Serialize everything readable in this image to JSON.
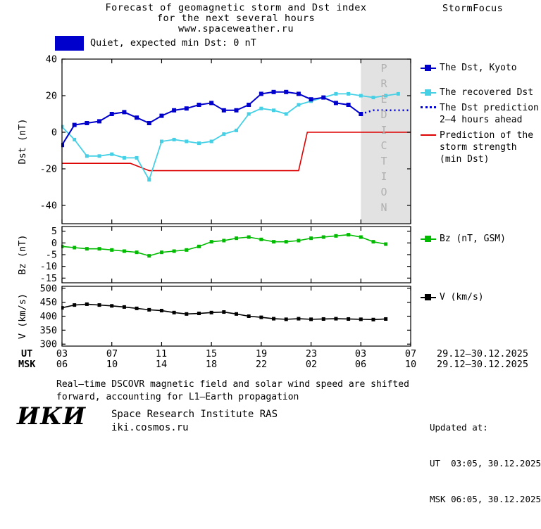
{
  "header": {
    "title_lines": [
      "Forecast of geomagnetic storm and Dst index",
      "for the next several hours",
      "www.spaceweather.ru"
    ],
    "brand": "StormFocus"
  },
  "banner": {
    "label": "Quiet, expected min Dst: 0 nT",
    "color": "#0000cc"
  },
  "prediction_overlay": "PREDICTION",
  "chart_data": [
    {
      "id": "dst",
      "type": "line",
      "ylabel": "Dst (nT)",
      "ylim": [
        -50,
        40
      ],
      "yticks": [
        40,
        20,
        0,
        -20,
        -40
      ],
      "xlim": [
        3,
        31
      ],
      "xticks": [
        3,
        7,
        11,
        15,
        19,
        23,
        27,
        31
      ],
      "prediction_region": [
        27,
        31
      ],
      "series": [
        {
          "name": "Prediction of the storm strength (min Dst)",
          "color": "#dd0000",
          "width": 1.6,
          "x": [
            3,
            8.5,
            10,
            22,
            22.7,
            31
          ],
          "values": [
            -17,
            -17,
            -21,
            -21,
            0,
            0
          ]
        },
        {
          "name": "The recovered Dst",
          "color": "#45d0e6",
          "width": 1.8,
          "marker": 5,
          "x0": 3,
          "values": [
            3,
            -4,
            -13,
            -13,
            -12,
            -14,
            -14,
            -26,
            -5,
            -4,
            -5,
            -6,
            -5,
            -1,
            1,
            10,
            13,
            12,
            10,
            15,
            17,
            19,
            21,
            21,
            20,
            19,
            20,
            21
          ]
        },
        {
          "name": "The Dst, Kyoto",
          "color": "#0000cc",
          "width": 2,
          "marker": 6,
          "x0": 3,
          "values": [
            -7,
            4,
            5,
            6,
            10,
            11,
            8,
            5,
            9,
            12,
            13,
            15,
            16,
            12,
            12,
            15,
            21,
            22,
            22,
            21,
            18,
            19,
            16,
            15,
            10
          ]
        },
        {
          "name": "The Dst prediction 2–4 hours ahead",
          "color": "#0000cc",
          "width": 2.6,
          "dash": "2 4",
          "x": [
            27,
            28,
            31
          ],
          "values": [
            10,
            12,
            12
          ]
        }
      ]
    },
    {
      "id": "bz",
      "type": "line",
      "ylabel": "Bz (nT)",
      "ylim": [
        -17,
        7
      ],
      "yticks": [
        5,
        0,
        -5,
        -10,
        -15
      ],
      "xlim": [
        3,
        31
      ],
      "xticks": [
        3,
        7,
        11,
        15,
        19,
        23,
        27,
        31
      ],
      "series": [
        {
          "name": "Bz (nT, GSM)",
          "color": "#00bb00",
          "width": 1.6,
          "marker": 5,
          "x0": 3,
          "values": [
            -1.5,
            -2,
            -2.5,
            -2.5,
            -3,
            -3.5,
            -4,
            -5.5,
            -4,
            -3.5,
            -3,
            -1.5,
            0.5,
            1,
            2,
            2.5,
            1.5,
            0.5,
            0.5,
            1,
            2,
            2.5,
            3,
            3.5,
            2.5,
            0.5,
            -0.5
          ]
        }
      ]
    },
    {
      "id": "v",
      "type": "line",
      "ylabel": "V (km/s)",
      "ylim": [
        293,
        507
      ],
      "yticks": [
        500,
        450,
        400,
        350,
        300
      ],
      "xlim": [
        3,
        31
      ],
      "xticks": [
        3,
        7,
        11,
        15,
        19,
        23,
        27,
        31
      ],
      "series": [
        {
          "name": "V (km/s)",
          "color": "#000000",
          "width": 1.6,
          "marker": 5,
          "x0": 3,
          "values": [
            430,
            440,
            443,
            440,
            437,
            433,
            428,
            423,
            420,
            413,
            408,
            410,
            413,
            415,
            408,
            400,
            396,
            391,
            389,
            391,
            389,
            390,
            391,
            390,
            389,
            388,
            390
          ]
        }
      ]
    }
  ],
  "xaxis": {
    "ut_label": "UT",
    "msk_label": "MSK",
    "ut_ticks": [
      "03",
      "07",
      "11",
      "15",
      "19",
      "23",
      "03",
      "07"
    ],
    "msk_ticks": [
      "06",
      "10",
      "14",
      "18",
      "22",
      "02",
      "06",
      "10"
    ],
    "ut_date_range": "29.12–30.12.2025",
    "msk_date_range": "29.12–30.12.2025"
  },
  "legend": {
    "items": [
      {
        "color": "#0000cc",
        "style": "square",
        "lines": [
          "The Dst, Kyoto"
        ]
      },
      {
        "color": "#45d0e6",
        "style": "square",
        "lines": [
          "The recovered Dst"
        ]
      },
      {
        "color": "#0000cc",
        "style": "dotted",
        "lines": [
          "The Dst prediction",
          "2–4 hours ahead"
        ]
      },
      {
        "color": "#dd0000",
        "style": "line",
        "lines": [
          "Prediction of the",
          "storm strength",
          "(min Dst)"
        ]
      },
      {
        "color": "#00bb00",
        "style": "square",
        "lines": [
          "Bz (nT, GSM)"
        ]
      },
      {
        "color": "#000000",
        "style": "square",
        "lines": [
          "V (km/s)"
        ]
      }
    ]
  },
  "footer": {
    "note_lines": [
      "Real–time DSCOVR magnetic field and solar wind speed are shifted",
      "forward, accounting for L1–Earth propagation"
    ],
    "logo": "ИКИ",
    "institute": "Space Research Institute RAS",
    "website": "iki.cosmos.ru",
    "updated_label": "Updated at:",
    "updated_ut": "UT  03:05, 30.12.2025",
    "updated_msk": "MSK 06:05, 30.12.2025"
  }
}
